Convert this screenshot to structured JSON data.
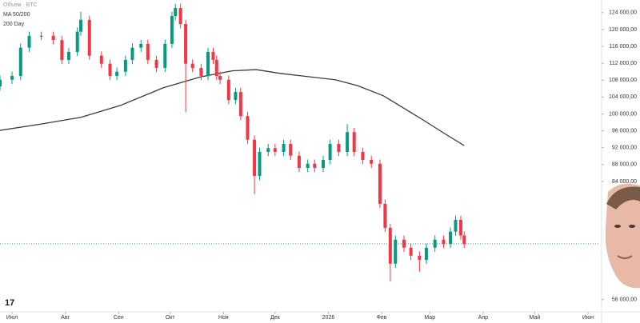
{
  "chart_data": {
    "type": "candlestick",
    "legend": [
      "Объем · BTC",
      "MA 50/200",
      "200 Day"
    ],
    "x": [
      "2025-06-24",
      "2025-07-01",
      "2025-07-06",
      "2025-07-11",
      "2025-07-18",
      "2025-07-25",
      "2025-07-30",
      "2025-08-03",
      "2025-08-08",
      "2025-08-10",
      "2025-08-15",
      "2025-08-22",
      "2025-08-27",
      "2025-08-31",
      "2025-09-05",
      "2025-09-09",
      "2025-09-14",
      "2025-09-18",
      "2025-09-23",
      "2025-09-28",
      "2025-10-02",
      "2025-10-04",
      "2025-10-07",
      "2025-10-10",
      "2025-10-14",
      "2025-10-19",
      "2025-10-23",
      "2025-10-26",
      "2025-10-28",
      "2025-10-30",
      "2025-11-04",
      "2025-11-08",
      "2025-11-11",
      "2025-11-15",
      "2025-11-19",
      "2025-11-22",
      "2025-11-27",
      "2025-12-01",
      "2025-12-06",
      "2025-12-10",
      "2025-12-15",
      "2025-12-20",
      "2025-12-24",
      "2025-12-29",
      "2026-01-02",
      "2026-01-07",
      "2026-01-12",
      "2026-01-16",
      "2026-01-21",
      "2026-01-26",
      "2026-01-31",
      "2026-02-03",
      "2026-02-06",
      "2026-02-09",
      "2026-02-14",
      "2026-02-18",
      "2026-02-23",
      "2026-02-27",
      "2026-03-04",
      "2026-03-09",
      "2026-03-13",
      "2026-03-16",
      "2026-03-19",
      "2026-03-21"
    ],
    "open": [
      106500,
      108100,
      109000,
      115700,
      118500,
      118500,
      117500,
      112800,
      114700,
      119500,
      122300,
      113800,
      111900,
      109000,
      110000,
      112800,
      115700,
      116600,
      112800,
      110900,
      116600,
      123200,
      125100,
      121300,
      111900,
      110900,
      109000,
      114700,
      112800,
      109000,
      108100,
      103300,
      105200,
      99500,
      93900,
      85300,
      91000,
      91900,
      91000,
      92900,
      90100,
      87200,
      88200,
      87200,
      89100,
      92900,
      91000,
      95700,
      91000,
      89100,
      88200,
      78700,
      73000,
      64500,
      70200,
      68300,
      66400,
      65400,
      68300,
      70200,
      69200,
      72100,
      74900,
      71200
    ],
    "high": [
      109100,
      110000,
      116700,
      119500,
      119500,
      119500,
      118500,
      115700,
      120500,
      124200,
      123300,
      114800,
      112900,
      111000,
      113800,
      116700,
      117600,
      117600,
      113800,
      117600,
      124200,
      126100,
      126100,
      122300,
      112900,
      111900,
      115700,
      115700,
      113800,
      110000,
      109100,
      106200,
      106200,
      100500,
      94900,
      92000,
      92900,
      92900,
      93900,
      93900,
      91100,
      89200,
      89200,
      90100,
      93900,
      93900,
      97600,
      96700,
      92000,
      90100,
      89200,
      79700,
      74000,
      71200,
      71200,
      69300,
      67400,
      69300,
      71200,
      71200,
      73100,
      75900,
      75900,
      72200
    ],
    "low": [
      105500,
      107100,
      108000,
      114700,
      117500,
      116500,
      111800,
      111800,
      113700,
      118500,
      112800,
      110900,
      108000,
      108000,
      109000,
      111800,
      114700,
      111800,
      109900,
      109900,
      115600,
      122200,
      120300,
      100400,
      109900,
      108000,
      108000,
      111800,
      108000,
      107100,
      102300,
      102300,
      98500,
      92900,
      81000,
      84300,
      90000,
      90000,
      90000,
      89100,
      86200,
      86200,
      86200,
      86200,
      88100,
      90000,
      90000,
      90000,
      88100,
      87200,
      77700,
      72000,
      60300,
      63500,
      67300,
      65400,
      62600,
      64400,
      67300,
      68200,
      68200,
      71100,
      70200,
      68200
    ],
    "close": [
      108100,
      109000,
      115700,
      118500,
      118500,
      117500,
      112800,
      114700,
      119500,
      122300,
      113800,
      111900,
      109000,
      110000,
      112800,
      115700,
      116600,
      112800,
      110900,
      116600,
      123200,
      125100,
      121300,
      111900,
      110900,
      109000,
      114700,
      112800,
      109000,
      108100,
      103300,
      105200,
      99500,
      93900,
      85300,
      91000,
      91900,
      91000,
      92900,
      90100,
      87200,
      88200,
      87200,
      89100,
      92900,
      91000,
      95700,
      91000,
      89100,
      88200,
      78700,
      73000,
      64500,
      70200,
      68300,
      66400,
      65400,
      68300,
      70200,
      69200,
      72100,
      74900,
      71200,
      69200
    ],
    "up_color": "#089981",
    "down_color": "#f23645",
    "ma": {
      "color": "#3a3a3a",
      "x": [
        "2025-06-24",
        "2025-07-18",
        "2025-08-10",
        "2025-09-02",
        "2025-09-27",
        "2025-10-19",
        "2025-11-06",
        "2025-11-20",
        "2025-12-04",
        "2026-01-05",
        "2026-01-18",
        "2026-02-02",
        "2026-02-25",
        "2026-03-09",
        "2026-03-21"
      ],
      "values": [
        96100,
        97600,
        99200,
        102000,
        106200,
        108800,
        110200,
        110500,
        109600,
        108100,
        106700,
        104300,
        98600,
        95500,
        92500
      ]
    },
    "last_price_color": "#26a69a",
    "xlim": [
      "2025-06-24",
      "2026-06-08"
    ],
    "xticks": [
      {
        "value": "2025-07-01",
        "label": "Июл"
      },
      {
        "value": "2025-08-01",
        "label": "Авг"
      },
      {
        "value": "2025-09-01",
        "label": "Сен"
      },
      {
        "value": "2025-10-01",
        "label": "Окт"
      },
      {
        "value": "2025-11-01",
        "label": "Ноя"
      },
      {
        "value": "2025-12-01",
        "label": "Дек"
      },
      {
        "value": "2026-01-01",
        "label": "2026"
      },
      {
        "value": "2026-02-01",
        "label": "Фев"
      },
      {
        "value": "2026-03-01",
        "label": "Мар"
      },
      {
        "value": "2026-04-01",
        "label": "Апр"
      },
      {
        "value": "2026-05-01",
        "label": "Май"
      },
      {
        "value": "2026-06-01",
        "label": "Июн"
      }
    ],
    "ylim": [
      53100,
      127000
    ],
    "yticks": [
      {
        "value": 124000,
        "label": "124 000,00"
      },
      {
        "value": 120000,
        "label": "120 000,00"
      },
      {
        "value": 116000,
        "label": "116 000,00"
      },
      {
        "value": 112000,
        "label": "112 000,00"
      },
      {
        "value": 108000,
        "label": "108 000,00"
      },
      {
        "value": 104000,
        "label": "104 000,00"
      },
      {
        "value": 100000,
        "label": "100 000,00"
      },
      {
        "value": 96000,
        "label": "96 000,00"
      },
      {
        "value": 92000,
        "label": "92 000,00"
      },
      {
        "value": 88000,
        "label": "88 000,00"
      },
      {
        "value": 84000,
        "label": "84 000,00"
      },
      {
        "value": 56000,
        "label": "56 000,00"
      }
    ]
  }
}
